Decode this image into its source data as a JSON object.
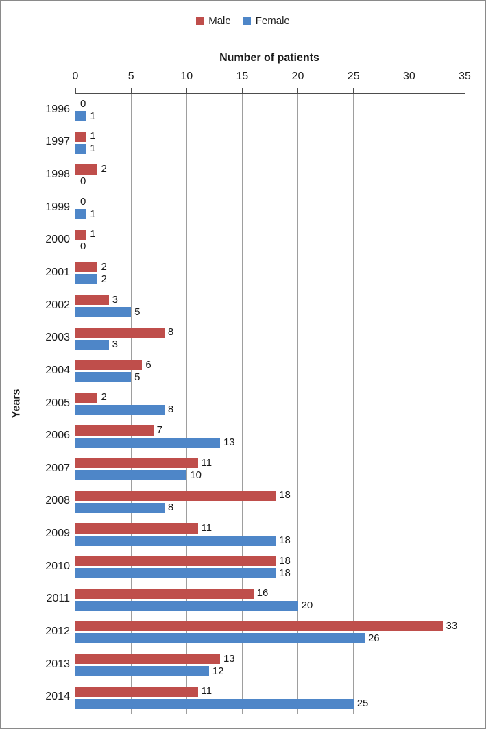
{
  "chart_data": {
    "type": "bar",
    "orientation": "horizontal",
    "value_axis_title": "Number of patients",
    "category_axis_title": "Years",
    "categories": [
      "1996",
      "1997",
      "1998",
      "1999",
      "2000",
      "2001",
      "2002",
      "2003",
      "2004",
      "2005",
      "2006",
      "2007",
      "2008",
      "2009",
      "2010",
      "2011",
      "2012",
      "2013",
      "2014"
    ],
    "series": [
      {
        "name": "Male",
        "color": "#bf4e4b",
        "values": [
          0,
          1,
          2,
          0,
          1,
          2,
          3,
          8,
          6,
          2,
          7,
          11,
          18,
          11,
          18,
          16,
          33,
          13,
          11
        ]
      },
      {
        "name": "Female",
        "color": "#4e86c8",
        "values": [
          1,
          1,
          0,
          1,
          0,
          2,
          5,
          3,
          5,
          8,
          13,
          10,
          8,
          18,
          18,
          20,
          26,
          12,
          25
        ]
      }
    ],
    "value_ticks": [
      0,
      5,
      10,
      15,
      20,
      25,
      30,
      35
    ],
    "xlim": [
      0,
      35
    ],
    "grid": true,
    "legend_position": "top",
    "data_labels": true
  }
}
